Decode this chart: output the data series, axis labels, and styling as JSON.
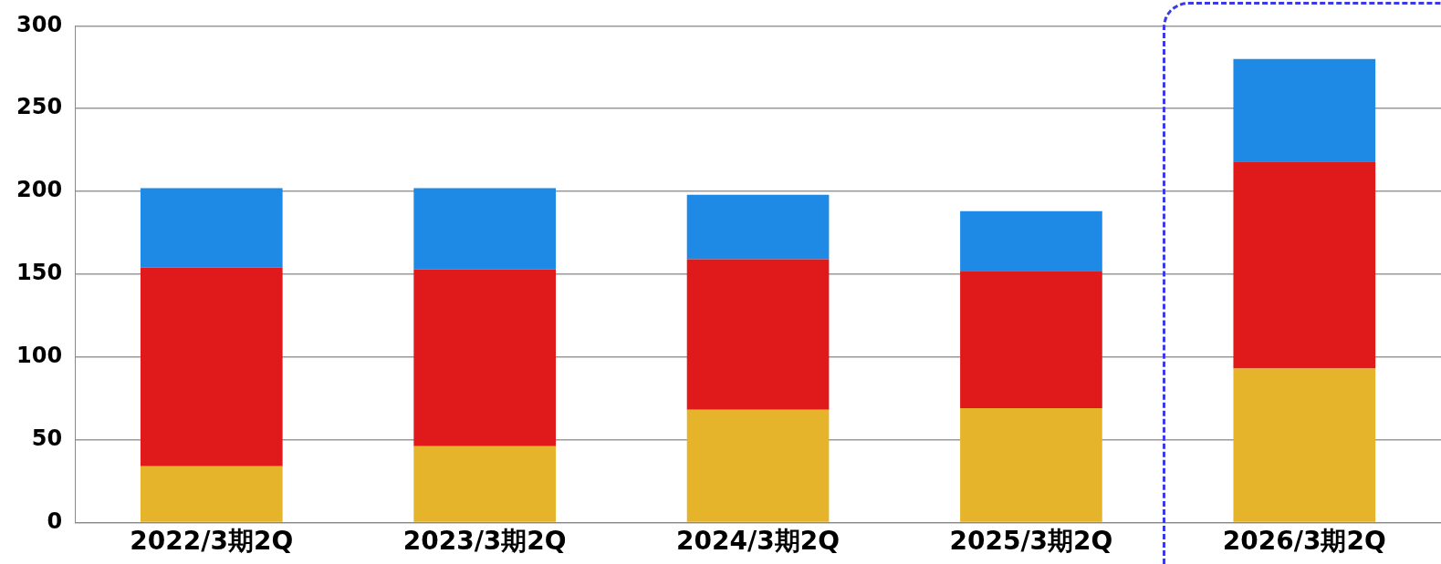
{
  "chart_data": {
    "type": "bar",
    "stacked": true,
    "categories": [
      "2022/3期2Q",
      "2023/3期2Q",
      "2024/3期2Q",
      "2025/3期2Q",
      "2026/3期2Q"
    ],
    "series": [
      {
        "color": "#e6b42a",
        "values": [
          34,
          46,
          68,
          69,
          93
        ]
      },
      {
        "color": "#e01a1a",
        "values": [
          120,
          107,
          91,
          83,
          125
        ]
      },
      {
        "color": "#1e8ae6",
        "values": [
          48,
          49,
          39,
          36,
          62
        ]
      }
    ],
    "ylim": [
      0,
      300
    ],
    "yticks": [
      0,
      50,
      100,
      150,
      200,
      250,
      300
    ],
    "grid": "y",
    "legend": false
  }
}
